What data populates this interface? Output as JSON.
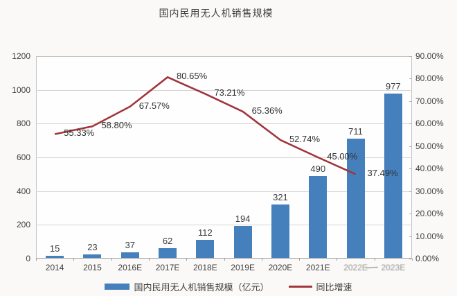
{
  "title": "国内民用无人机销售规模",
  "chart_data": {
    "type": "bar+line",
    "categories": [
      "2014",
      "2015",
      "2016E",
      "2017E",
      "2018E",
      "2019E",
      "2020E",
      "2021E",
      "2022E",
      "2023E"
    ],
    "series": [
      {
        "name": "国内民用无人机销售规模（亿元）",
        "type": "bar",
        "axis": "left",
        "values": [
          15,
          23,
          37,
          62,
          112,
          194,
          321,
          490,
          711,
          977
        ],
        "color": "#4580bd"
      },
      {
        "name": "同比增速",
        "type": "line",
        "axis": "right",
        "values": [
          55.33,
          58.8,
          67.57,
          80.65,
          73.21,
          65.36,
          52.74,
          45.0,
          37.49,
          null
        ],
        "point_labels": [
          "55.33%",
          "58.80%",
          "67.57%",
          "80.65%",
          "73.21%",
          "65.36%",
          "52.74%",
          "45.00%",
          "37.49%",
          ""
        ],
        "color": "#a0353c"
      }
    ],
    "left_axis": {
      "min": 0,
      "max": 1200,
      "step": 200,
      "ticks": [
        "0",
        "200",
        "400",
        "600",
        "800",
        "1000",
        "1200"
      ]
    },
    "right_axis": {
      "min": 0,
      "max": 90,
      "step": 10,
      "ticks": [
        "0.00%",
        "10.00%",
        "20.00%",
        "30.00%",
        "40.00%",
        "50.00%",
        "60.00%",
        "70.00%",
        "80.00%",
        "90.00%"
      ]
    },
    "grid": "horizontal",
    "legend_position": "bottom"
  }
}
